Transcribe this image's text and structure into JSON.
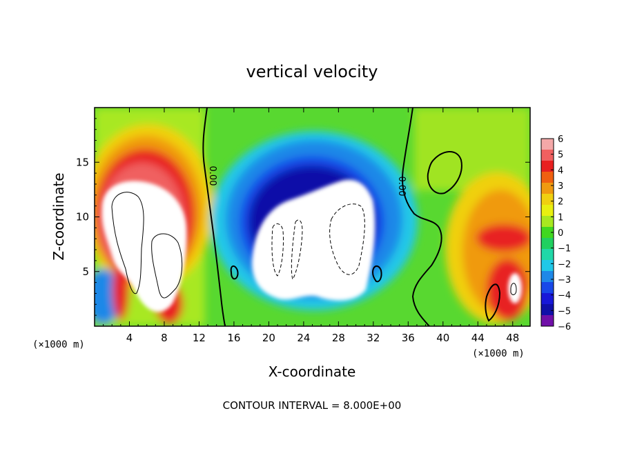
{
  "chart_data": {
    "type": "heatmap",
    "title": "vertical velocity",
    "xlabel": "X-coordinate",
    "ylabel": "Z-coordinate",
    "x_units": "(×1000 m)",
    "x_units_right": "(×1000 m)",
    "footer": "CONTOUR INTERVAL = 8.000E+00",
    "xlim": [
      0,
      50
    ],
    "ylim": [
      0,
      20
    ],
    "x_ticks": [
      "4",
      "8",
      "12",
      "16",
      "20",
      "24",
      "28",
      "32",
      "36",
      "40",
      "44",
      "48"
    ],
    "y_ticks": [
      "5",
      "10",
      "15"
    ],
    "contour_labels": [
      "0.00",
      "0.00"
    ],
    "colorbar": {
      "ticks": [
        "6",
        "5",
        "4",
        "3",
        "2",
        "1",
        "0",
        "−1",
        "−2",
        "−3",
        "−4",
        "−5",
        "−6"
      ],
      "range": [
        -6,
        6
      ],
      "colors": [
        "#f4a8a8",
        "#f06060",
        "#e82020",
        "#f06010",
        "#f09a10",
        "#f0d010",
        "#e8f010",
        "#a8e820",
        "#40d820",
        "#20d060",
        "#20d8a8",
        "#20c8e8",
        "#1e88e8",
        "#1848e8",
        "#1818d8",
        "#1010a8",
        "#7010a8"
      ]
    },
    "grid": false,
    "legend": "none"
  }
}
